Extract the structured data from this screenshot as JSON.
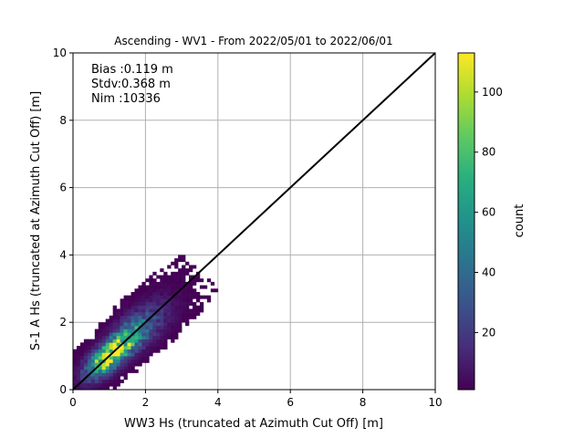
{
  "chart_data": {
    "type": "heatmap",
    "title": "Ascending - WV1 - From 2022/05/01 to 2022/06/01",
    "xlabel": "WW3 Hs (truncated at Azimuth Cut Off) [m]",
    "ylabel": "S-1 A Hs (truncated at Azimuth Cut Off) [m]",
    "xlim": [
      0,
      10
    ],
    "ylim": [
      0,
      10
    ],
    "x_ticks": [
      "0",
      "2",
      "4",
      "6",
      "8",
      "10"
    ],
    "y_ticks": [
      "0",
      "2",
      "4",
      "6",
      "8",
      "10"
    ],
    "grid": true,
    "stats": {
      "bias": "Bias :0.119 m",
      "stdv": "Stdv:0.368 m",
      "nim": "Nim :10336"
    },
    "reference_line": {
      "from": [
        0,
        0
      ],
      "to": [
        10,
        10
      ],
      "color": "#000000"
    },
    "colorbar": {
      "label": "count",
      "min": 1,
      "max": 113,
      "ticks": [
        "20",
        "40",
        "60",
        "80",
        "100"
      ],
      "colormap": "viridis"
    },
    "density_model": {
      "bin_size": 0.1,
      "peak_count": 113,
      "peak_center": [
        0.95,
        1.0
      ],
      "along_diagonal_scale": 0.55,
      "across_diagonal_scale": 0.22,
      "max_x": 4.8,
      "max_y": 5.0
    }
  }
}
